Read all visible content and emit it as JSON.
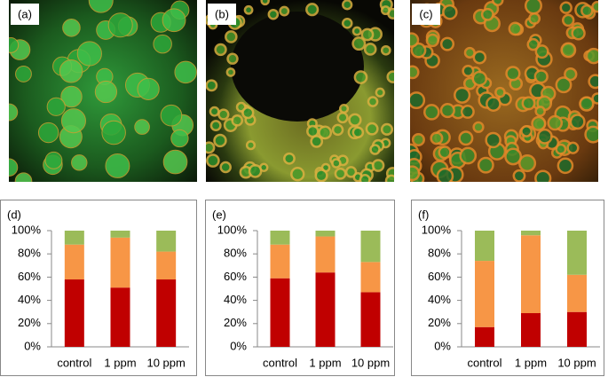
{
  "images": [
    {
      "label": "(a)"
    },
    {
      "label": "(b)"
    },
    {
      "label": "(c)"
    }
  ],
  "chart_data": [
    {
      "type": "stacked-bar",
      "title": "(d)",
      "categories": [
        "control",
        "1 ppm",
        "10 ppm"
      ],
      "series": [
        {
          "color": "#c00000",
          "values": [
            58,
            51,
            58
          ]
        },
        {
          "color": "#f79646",
          "values": [
            30,
            43,
            24
          ]
        },
        {
          "color": "#9bbb59",
          "values": [
            12,
            6,
            18
          ]
        }
      ],
      "ylim": [
        0,
        100
      ],
      "yticks": [
        {
          "value": 0,
          "label": "0%"
        },
        {
          "value": 20,
          "label": "20%"
        },
        {
          "value": 40,
          "label": "40%"
        },
        {
          "value": 60,
          "label": "60%"
        },
        {
          "value": 80,
          "label": "80%"
        },
        {
          "value": 100,
          "label": "100%"
        }
      ]
    },
    {
      "type": "stacked-bar",
      "title": "(e)",
      "categories": [
        "control",
        "1 ppm",
        "10 ppm"
      ],
      "series": [
        {
          "color": "#c00000",
          "values": [
            59,
            64,
            47
          ]
        },
        {
          "color": "#f79646",
          "values": [
            29,
            31,
            26
          ]
        },
        {
          "color": "#9bbb59",
          "values": [
            12,
            5,
            27
          ]
        }
      ],
      "ylim": [
        0,
        100
      ],
      "yticks": [
        {
          "value": 0,
          "label": "0%"
        },
        {
          "value": 20,
          "label": "20%"
        },
        {
          "value": 40,
          "label": "40%"
        },
        {
          "value": 60,
          "label": "60%"
        },
        {
          "value": 80,
          "label": "80%"
        },
        {
          "value": 100,
          "label": "100%"
        }
      ]
    },
    {
      "type": "stacked-bar",
      "title": "(f)",
      "categories": [
        "control",
        "1 ppm",
        "10 ppm"
      ],
      "series": [
        {
          "color": "#c00000",
          "values": [
            17,
            29,
            30
          ]
        },
        {
          "color": "#f79646",
          "values": [
            57,
            67,
            32
          ]
        },
        {
          "color": "#9bbb59",
          "values": [
            26,
            4,
            38
          ]
        }
      ],
      "ylim": [
        0,
        100
      ],
      "yticks": [
        {
          "value": 0,
          "label": "0%"
        },
        {
          "value": 20,
          "label": "20%"
        },
        {
          "value": 40,
          "label": "40%"
        },
        {
          "value": 60,
          "label": "60%"
        },
        {
          "value": 80,
          "label": "80%"
        },
        {
          "value": 100,
          "label": "100%"
        }
      ]
    }
  ]
}
